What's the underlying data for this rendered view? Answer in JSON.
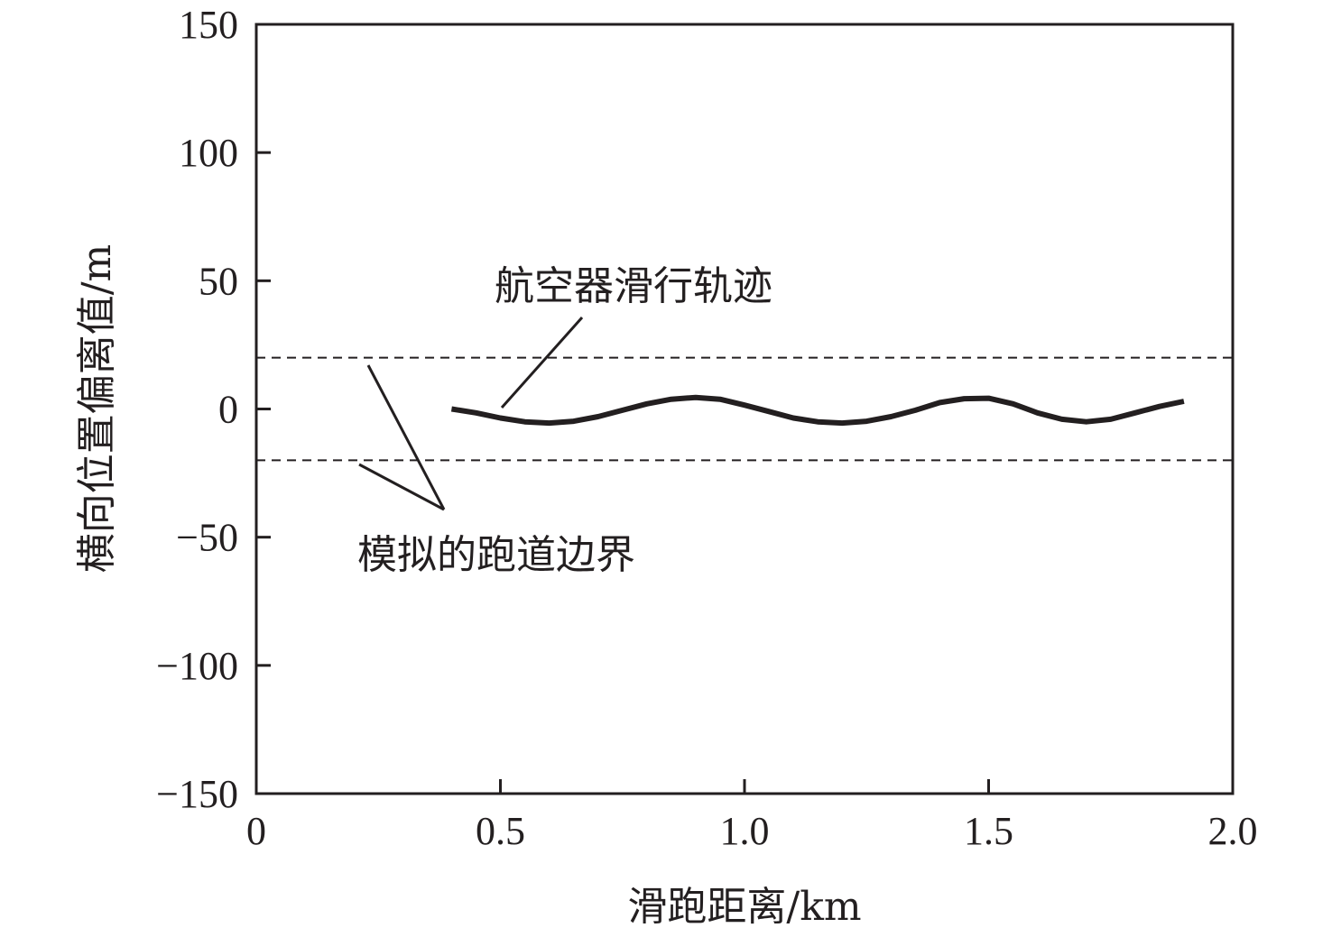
{
  "chart_data": {
    "type": "line",
    "xlabel": "滑跑距离/km",
    "ylabel": "横向位置偏离值/m",
    "xlim": [
      0,
      2.0
    ],
    "ylim": [
      -150,
      150
    ],
    "x_ticks": [
      0,
      0.5,
      1.0,
      1.5,
      2.0
    ],
    "x_tick_labels": [
      "0",
      "0.5",
      "1.0",
      "1.5",
      "2.0"
    ],
    "y_ticks": [
      150,
      100,
      50,
      0,
      -50,
      -100,
      -150
    ],
    "y_tick_labels": [
      "150",
      "100",
      "50",
      "0",
      "−50",
      "−100",
      "−150"
    ],
    "grid": false,
    "series": [
      {
        "x": [
          0.4,
          0.45,
          0.5,
          0.55,
          0.6,
          0.65,
          0.7,
          0.75,
          0.8,
          0.85,
          0.9,
          0.95,
          1.0,
          1.05,
          1.1,
          1.15,
          1.2,
          1.25,
          1.3,
          1.35,
          1.4,
          1.45,
          1.5,
          1.55,
          1.6,
          1.65,
          1.7,
          1.75,
          1.8,
          1.85,
          1.9
        ],
        "y": [
          0,
          -1.5,
          -3.5,
          -5.0,
          -5.5,
          -4.8,
          -3.0,
          -0.5,
          2.0,
          3.8,
          4.5,
          3.8,
          1.5,
          -1.0,
          -3.5,
          -5.0,
          -5.5,
          -4.8,
          -3.0,
          -0.5,
          2.5,
          4.0,
          4.2,
          2.0,
          -1.5,
          -4.0,
          -5.0,
          -4.0,
          -1.5,
          1.0,
          3.0
        ],
        "color": "#231f20"
      },
      {
        "x": [
          0,
          2.0
        ],
        "y": [
          20,
          20
        ],
        "style": "dashed",
        "color": "#231f20"
      },
      {
        "x": [
          0,
          2.0
        ],
        "y": [
          -20,
          -20
        ],
        "style": "dashed",
        "color": "#231f20"
      }
    ],
    "annotations": [
      {
        "text": "航空器滑行轨迹"
      },
      {
        "text": "模拟的跑道边界"
      }
    ]
  }
}
